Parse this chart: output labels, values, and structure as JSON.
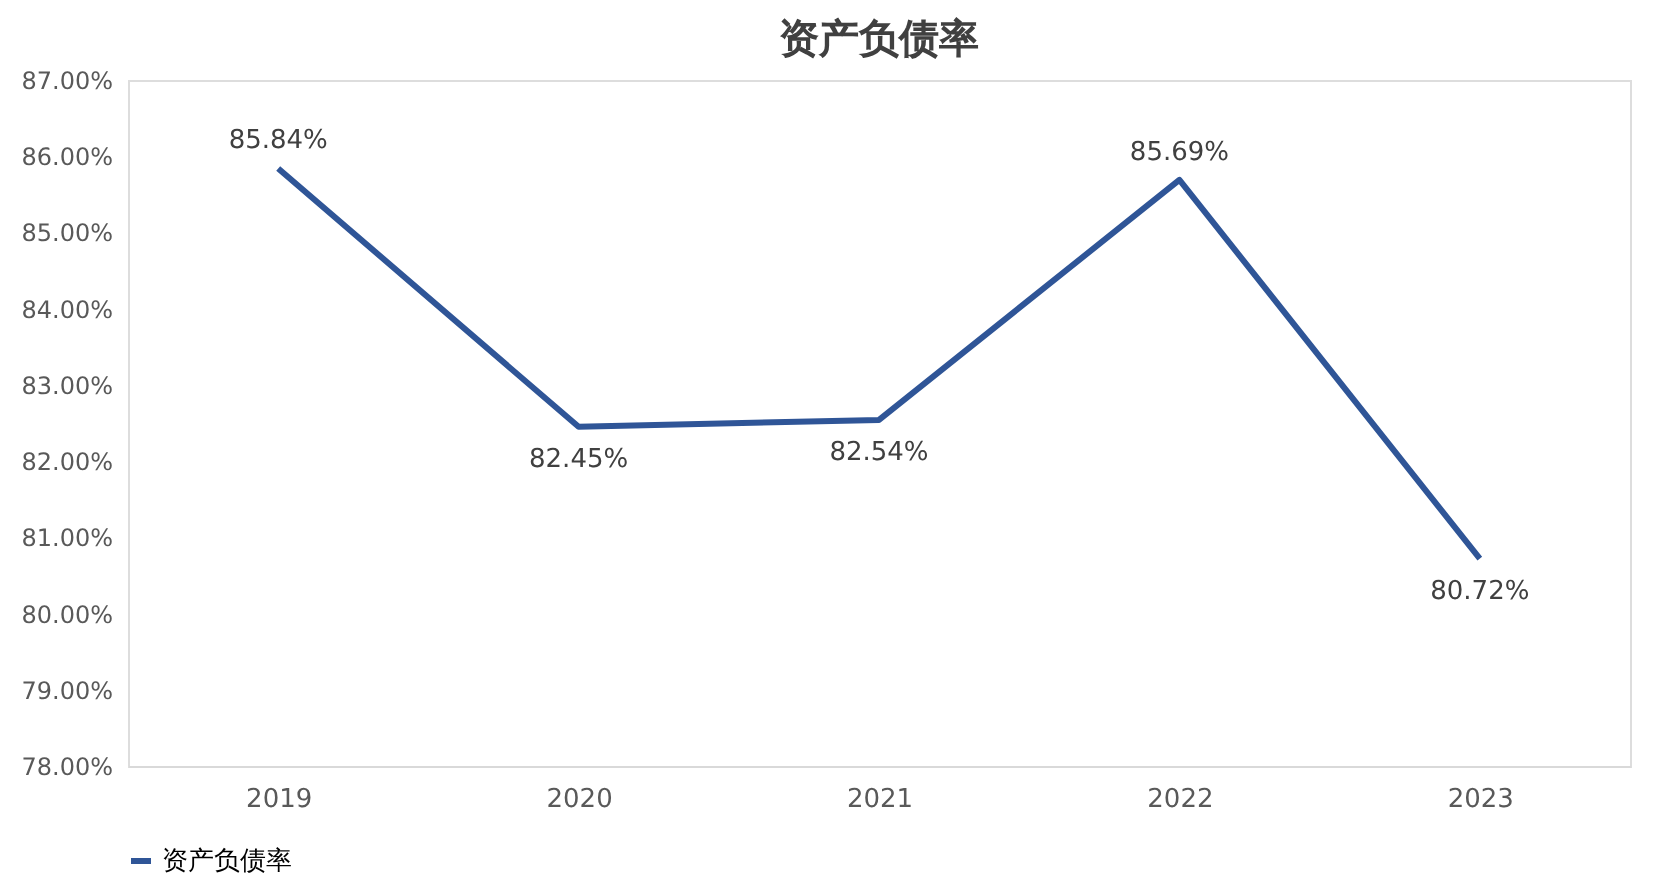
{
  "chart_data": {
    "type": "line",
    "title": "资产负债率",
    "categories": [
      "2019",
      "2020",
      "2021",
      "2022",
      "2023"
    ],
    "series": [
      {
        "name": "资产负债率",
        "color": "#2f5597",
        "values": [
          85.84,
          82.45,
          82.54,
          85.69,
          80.72
        ],
        "value_labels": [
          "85.84%",
          "82.45%",
          "82.54%",
          "85.69%",
          "80.72%"
        ]
      }
    ],
    "ylim": [
      78,
      87
    ],
    "yticks": [
      {
        "value": 78,
        "label": "78.00%"
      },
      {
        "value": 79,
        "label": "79.00%"
      },
      {
        "value": 80,
        "label": "80.00%"
      },
      {
        "value": 81,
        "label": "81.00%"
      },
      {
        "value": 82,
        "label": "82.00%"
      },
      {
        "value": 83,
        "label": "83.00%"
      },
      {
        "value": 84,
        "label": "84.00%"
      },
      {
        "value": 85,
        "label": "85.00%"
      },
      {
        "value": 86,
        "label": "86.00%"
      },
      {
        "value": 87,
        "label": "87.00%"
      }
    ],
    "grid": false,
    "legend": "bottom",
    "marker": "none",
    "line_style": "solid"
  }
}
